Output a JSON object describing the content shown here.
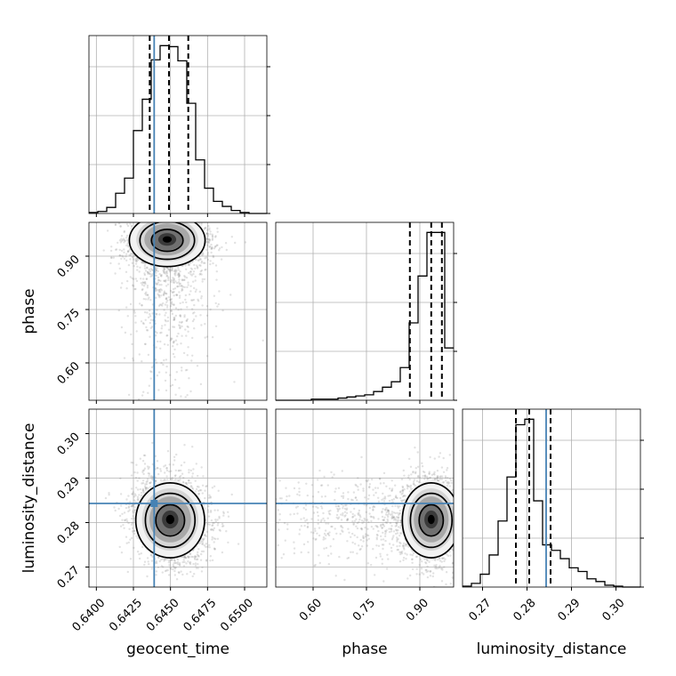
{
  "chart_data": {
    "type": "corner",
    "parameters": [
      "geocent_time",
      "phase",
      "luminosity_distance"
    ],
    "ranges": {
      "geocent_time": [
        0.6395,
        0.6515
      ],
      "phase": [
        0.495,
        0.995
      ],
      "luminosity_distance": [
        0.2655,
        0.3055
      ]
    },
    "ticks": {
      "geocent_time": [
        "0.6400",
        "0.6425",
        "0.6450",
        "0.6475",
        "0.6500"
      ],
      "phase": [
        "0.60",
        "0.75",
        "0.90"
      ],
      "luminosity_distance": [
        "0.27",
        "0.28",
        "0.29",
        "0.30"
      ]
    },
    "truths": {
      "geocent_time": 0.6439,
      "luminosity_distance": 0.2843
    },
    "colors": {
      "truth": "#4682b4",
      "histogram": "#000000",
      "grid": "#b0b0b0",
      "contour": "#000000"
    },
    "grid": true,
    "histograms": [
      {
        "parameter": "geocent_time",
        "bin_edges": [
          0.6395,
          0.6401,
          0.6407,
          0.6413,
          0.6419,
          0.6425,
          0.6431,
          0.6437,
          0.6443,
          0.6449,
          0.6455,
          0.6461,
          0.6467,
          0.6473,
          0.6479,
          0.6485,
          0.6491,
          0.6497,
          0.6503,
          0.6509,
          0.6515
        ],
        "counts": [
          1,
          2,
          6,
          20,
          35,
          82,
          113,
          152,
          166,
          165,
          151,
          109,
          53,
          25,
          12,
          7,
          3,
          1,
          0,
          0
        ],
        "quantiles": [
          0.6436,
          0.6449,
          0.6462
        ]
      },
      {
        "parameter": "phase",
        "bin_edges": [
          0.495,
          0.52,
          0.545,
          0.57,
          0.595,
          0.62,
          0.645,
          0.67,
          0.695,
          0.72,
          0.745,
          0.77,
          0.795,
          0.82,
          0.845,
          0.87,
          0.895,
          0.92,
          0.945,
          0.97,
          0.995
        ],
        "counts": [
          0,
          0,
          0,
          0,
          1,
          1,
          1,
          2,
          3,
          4,
          5,
          8,
          12,
          17,
          30,
          71,
          114,
          154,
          154,
          48
        ],
        "quantiles": [
          0.872,
          0.932,
          0.962
        ]
      },
      {
        "parameter": "luminosity_distance",
        "bin_edges": [
          0.2655,
          0.2675,
          0.2695,
          0.2715,
          0.2735,
          0.2755,
          0.2775,
          0.2795,
          0.2815,
          0.2835,
          0.2855,
          0.2875,
          0.2895,
          0.2915,
          0.2935,
          0.2955,
          0.2975,
          0.2995,
          0.3015,
          0.3035,
          0.3055
        ],
        "counts": [
          1,
          4,
          14,
          35,
          72,
          120,
          177,
          183,
          94,
          46,
          40,
          31,
          21,
          17,
          9,
          6,
          2,
          1,
          0,
          0
        ],
        "quantiles": [
          0.2775,
          0.2805,
          0.2853
        ]
      }
    ],
    "panels_2d": [
      {
        "x": "geocent_time",
        "y": "phase",
        "peak": {
          "x": 0.6449,
          "y": 0.947
        },
        "truth_x": 0.6439
      },
      {
        "x": "geocent_time",
        "y": "luminosity_distance",
        "peak": {
          "x": 0.6451,
          "y": 0.2807
        },
        "truth_x": 0.6439,
        "truth_y": 0.2843
      },
      {
        "x": "phase",
        "y": "luminosity_distance",
        "peak": {
          "x": 0.937,
          "y": 0.2807
        },
        "truth_y": 0.2843
      }
    ]
  }
}
